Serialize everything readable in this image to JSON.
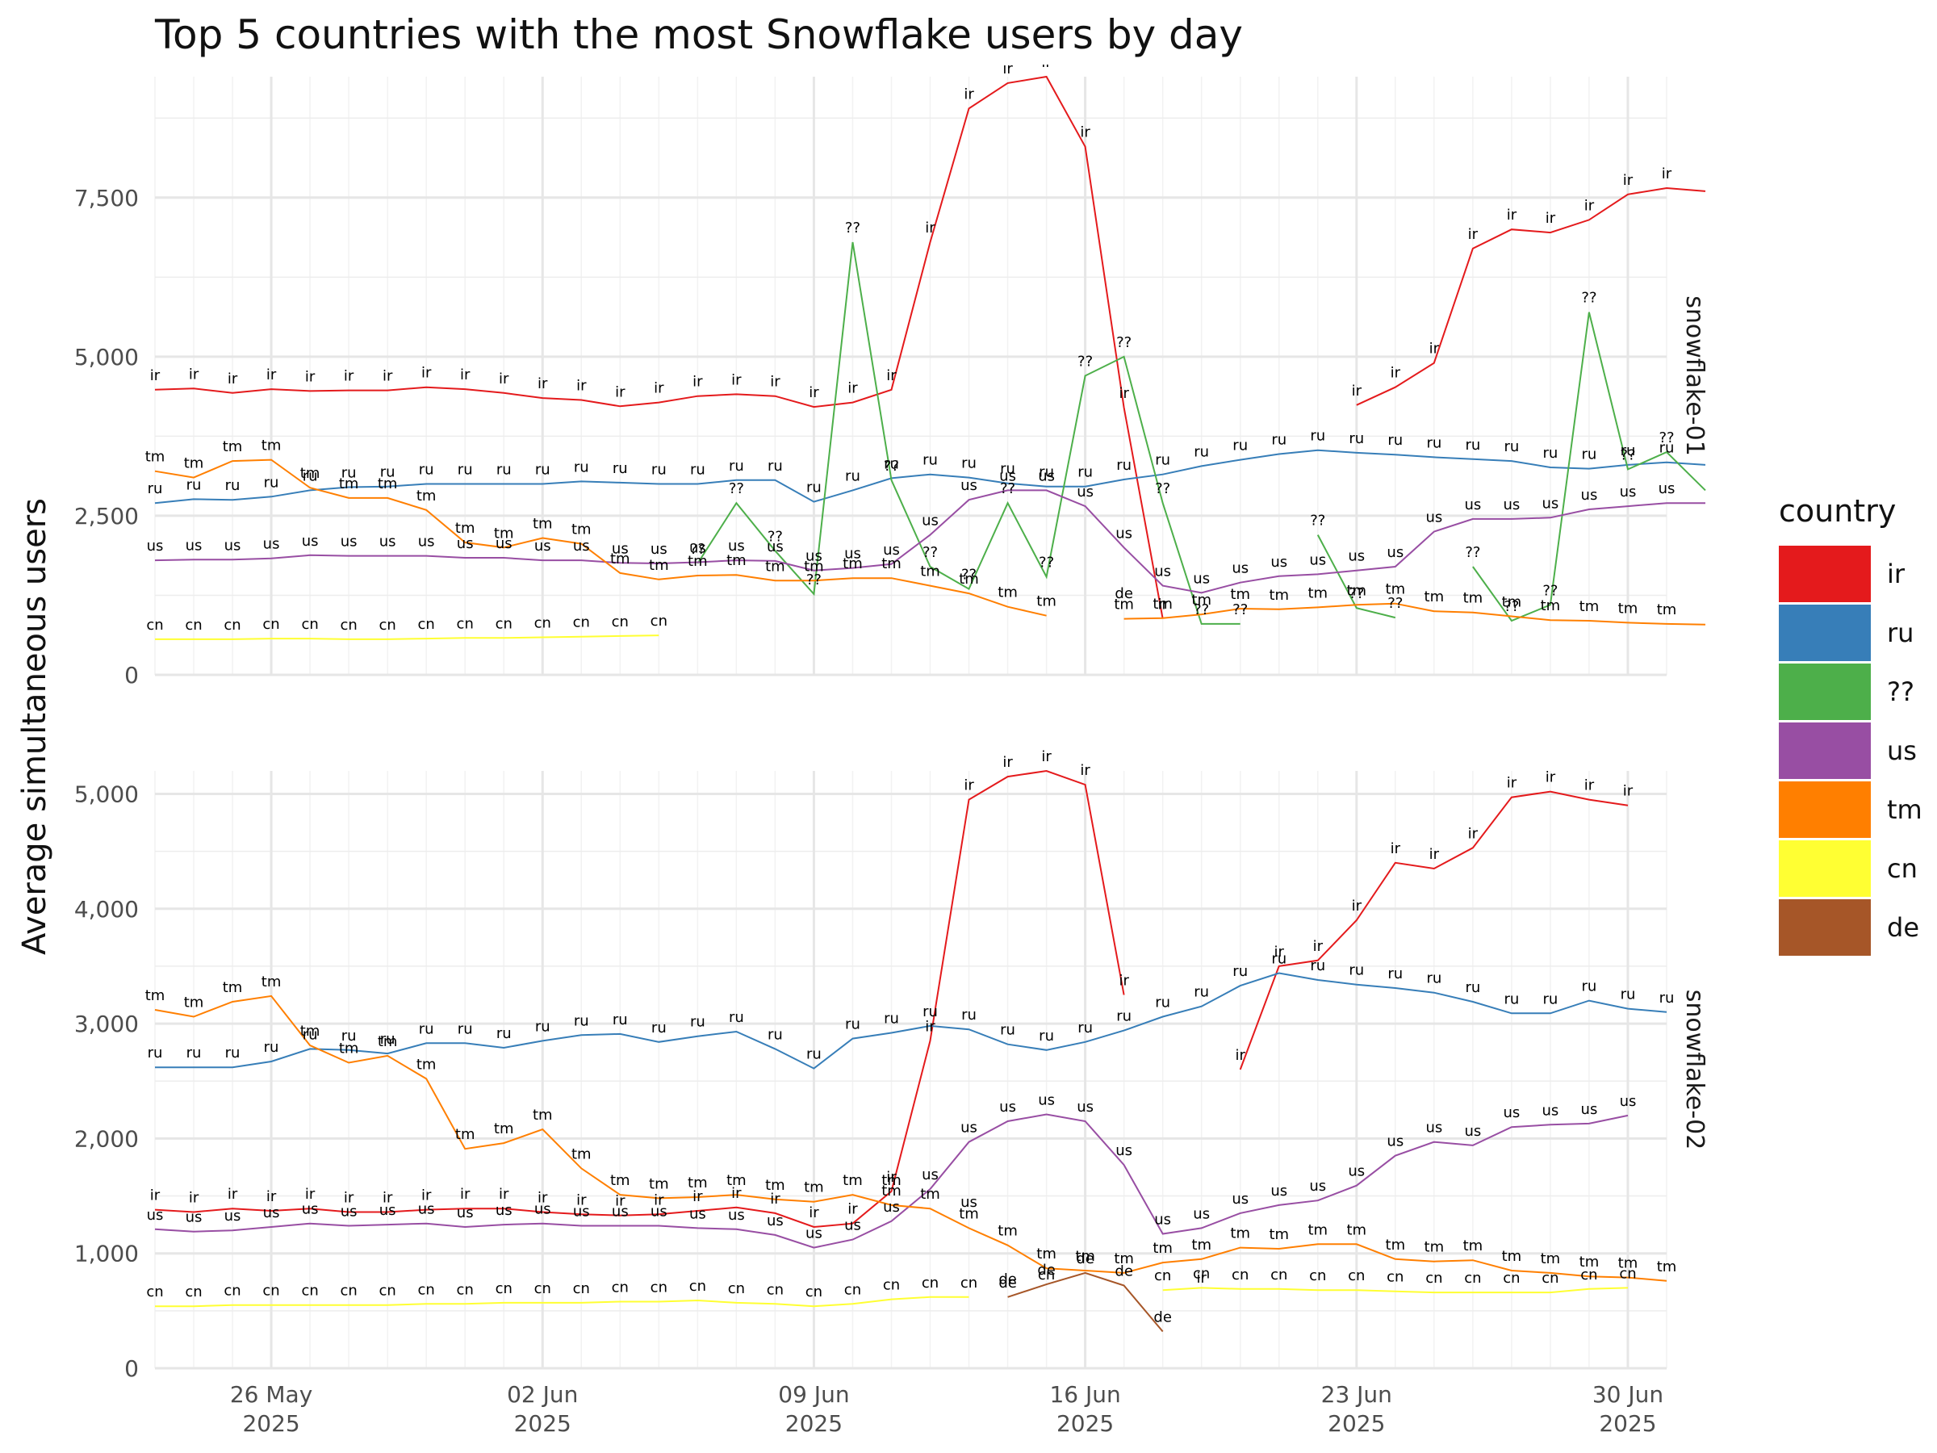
{
  "chart_data": {
    "type": "line",
    "title": "Top 5 countries with the most Snowflake users by day",
    "ylabel": "Average simultaneous users",
    "xlabel": "",
    "x_start": "2025-05-23",
    "x_range": [
      "2025-05-23",
      "2025-07-01"
    ],
    "x_ticks": [
      {
        "date": "2025-05-26",
        "line1": "26 May",
        "line2": "2025"
      },
      {
        "date": "2025-06-02",
        "line1": "02 Jun",
        "line2": "2025"
      },
      {
        "date": "2025-06-09",
        "line1": "09 Jun",
        "line2": "2025"
      },
      {
        "date": "2025-06-16",
        "line1": "16 Jun",
        "line2": "2025"
      },
      {
        "date": "2025-06-23",
        "line1": "23 Jun",
        "line2": "2025"
      },
      {
        "date": "2025-06-30",
        "line1": "30 Jun",
        "line2": "2025"
      }
    ],
    "legend": {
      "title": "country",
      "position": "right"
    },
    "grid": true,
    "countries": [
      {
        "code": "ir",
        "color": "#e41a1c"
      },
      {
        "code": "ru",
        "color": "#377eb8"
      },
      {
        "code": "??",
        "color": "#4daf4a"
      },
      {
        "code": "us",
        "color": "#984ea3"
      },
      {
        "code": "tm",
        "color": "#ff7f00"
      },
      {
        "code": "cn",
        "color": "#ffff33"
      },
      {
        "code": "de",
        "color": "#a65628"
      }
    ],
    "panels": [
      {
        "name": "snowflake-01",
        "ylim": [
          0,
          9400
        ],
        "yticks": [
          {
            "v": 0,
            "label": "0"
          },
          {
            "v": 2500,
            "label": "2,500"
          },
          {
            "v": 5000,
            "label": "5,000"
          },
          {
            "v": 7500,
            "label": "7,500"
          }
        ],
        "series": [
          {
            "country": "ir",
            "values": [
              4480,
              4500,
              4430,
              4490,
              4460,
              4470,
              4470,
              4520,
              4490,
              4430,
              4350,
              4320,
              4220,
              4280,
              4380,
              4410,
              4380,
              4210,
              4280,
              4480,
              6800,
              8900,
              9300,
              9400,
              8300,
              4200,
              880,
              null,
              null,
              null,
              null,
              4240,
              4520,
              4900,
              6700,
              7000,
              6950,
              7150,
              7550,
              7650,
              7600
            ]
          },
          {
            "country": "ru",
            "values": [
              2700,
              2760,
              2750,
              2800,
              2900,
              2950,
              2960,
              3000,
              3000,
              3000,
              3000,
              3040,
              3020,
              3000,
              3000,
              3060,
              3060,
              2720,
              2900,
              3090,
              3150,
              3100,
              3010,
              2960,
              2960,
              3070,
              3150,
              3280,
              3380,
              3470,
              3530,
              3490,
              3460,
              3420,
              3390,
              3360,
              3260,
              3240,
              3300,
              3340,
              3300
            ]
          },
          {
            "country": "??",
            "values": [
              null,
              null,
              null,
              null,
              null,
              null,
              null,
              null,
              null,
              null,
              null,
              null,
              null,
              null,
              1750,
              2700,
              1950,
              1270,
              6800,
              3060,
              1700,
              1350,
              2700,
              1540,
              4700,
              5000,
              2700,
              800,
              800,
              null,
              2200,
              1050,
              900,
              null,
              1700,
              850,
              1100,
              5700,
              3230,
              3500,
              2900
            ]
          },
          {
            "country": "us",
            "values": [
              1800,
              1810,
              1810,
              1830,
              1880,
              1870,
              1870,
              1870,
              1840,
              1840,
              1800,
              1800,
              1760,
              1750,
              1770,
              1800,
              1790,
              1640,
              1680,
              1740,
              2200,
              2750,
              2900,
              2900,
              2650,
              2000,
              1400,
              1290,
              1450,
              1550,
              1580,
              1640,
              1700,
              2250,
              2450,
              2450,
              2470,
              2600,
              2650,
              2700,
              2700
            ]
          },
          {
            "country": "tm",
            "values": [
              3200,
              3100,
              3360,
              3380,
              2940,
              2780,
              2780,
              2590,
              2080,
              2000,
              2150,
              2060,
              1600,
              1500,
              1560,
              1570,
              1480,
              1480,
              1520,
              1520,
              1400,
              1280,
              1070,
              930,
              null,
              880,
              890,
              950,
              1040,
              1030,
              1060,
              1100,
              1120,
              1000,
              980,
              920,
              860,
              850,
              820,
              800,
              790
            ]
          },
          {
            "country": "cn",
            "values": [
              560,
              560,
              560,
              570,
              570,
              560,
              560,
              570,
              580,
              580,
              590,
              600,
              610,
              620,
              null,
              null,
              null,
              null,
              null,
              null,
              null,
              null,
              null,
              null,
              null,
              null,
              null,
              null,
              null,
              null,
              null,
              null,
              null,
              null,
              null,
              null,
              null,
              null,
              null,
              null,
              null
            ]
          }
        ],
        "label_points": [
          {
            "t": "de",
            "d": 25,
            "v": 1050
          }
        ]
      },
      {
        "name": "snowflake-02",
        "ylim": [
          0,
          5200
        ],
        "yticks": [
          {
            "v": 0,
            "label": "0"
          },
          {
            "v": 1000,
            "label": "1,000"
          },
          {
            "v": 2000,
            "label": "2,000"
          },
          {
            "v": 3000,
            "label": "3,000"
          },
          {
            "v": 4000,
            "label": "4,000"
          },
          {
            "v": 5000,
            "label": "5,000"
          }
        ],
        "series": [
          {
            "country": "ir",
            "values": [
              1380,
              1360,
              1390,
              1370,
              1390,
              1360,
              1360,
              1380,
              1390,
              1390,
              1360,
              1340,
              1330,
              1340,
              1370,
              1400,
              1350,
              1230,
              1260,
              1540,
              2850,
              4950,
              5150,
              5200,
              5080,
              3250,
              null,
              null,
              2600,
              3500,
              3550,
              3900,
              4400,
              4350,
              4530,
              4970,
              5020,
              4950,
              4900
            ]
          },
          {
            "country": "ru",
            "values": [
              2620,
              2620,
              2620,
              2670,
              2780,
              2770,
              2740,
              2830,
              2830,
              2790,
              2850,
              2900,
              2910,
              2840,
              2890,
              2930,
              2780,
              2610,
              2870,
              2920,
              2980,
              2950,
              2820,
              2770,
              2840,
              2940,
              3060,
              3150,
              3330,
              3440,
              3380,
              3340,
              3310,
              3270,
              3190,
              3090,
              3090,
              3200,
              3130,
              3100
            ]
          },
          {
            "country": "us",
            "values": [
              1210,
              1190,
              1200,
              1230,
              1260,
              1240,
              1250,
              1260,
              1230,
              1250,
              1260,
              1240,
              1240,
              1240,
              1220,
              1210,
              1160,
              1050,
              1120,
              1280,
              1560,
              1970,
              2150,
              2210,
              2150,
              1770,
              1170,
              1220,
              1350,
              1420,
              1460,
              1590,
              1850,
              1970,
              1940,
              2100,
              2120,
              2130,
              2200
            ]
          },
          {
            "country": "tm",
            "values": [
              3120,
              3060,
              3190,
              3240,
              2810,
              2660,
              2720,
              2520,
              1910,
              1960,
              2080,
              1740,
              1510,
              1480,
              1490,
              1510,
              1470,
              1450,
              1510,
              1420,
              1390,
              1220,
              1070,
              870,
              850,
              830,
              920,
              950,
              1050,
              1040,
              1080,
              1080,
              950,
              930,
              940,
              850,
              830,
              800,
              790,
              760
            ]
          },
          {
            "country": "cn",
            "values": [
              540,
              540,
              550,
              550,
              550,
              550,
              550,
              560,
              560,
              570,
              570,
              570,
              580,
              580,
              590,
              570,
              560,
              540,
              560,
              600,
              620,
              620,
              null,
              null,
              null,
              null,
              680,
              700,
              690,
              690,
              680,
              680,
              670,
              660,
              660,
              660,
              660,
              690,
              700
            ]
          },
          {
            "country": "de",
            "values": [
              null,
              null,
              null,
              null,
              null,
              null,
              null,
              null,
              null,
              null,
              null,
              null,
              null,
              null,
              null,
              null,
              null,
              null,
              null,
              null,
              null,
              null,
              620,
              730,
              830,
              720,
              320,
              null,
              null,
              null,
              null,
              null,
              null,
              null,
              null,
              null,
              null,
              null,
              null,
              null
            ]
          }
        ],
        "label_points": [
          {
            "t": "ir",
            "d": 27,
            "v": 660
          },
          {
            "t": "tm",
            "d": 19,
            "v": 1510
          },
          {
            "t": "us",
            "d": 21,
            "v": 1320
          },
          {
            "t": "cn",
            "d": 23,
            "v": 690
          },
          {
            "t": "de",
            "d": 22,
            "v": 650
          }
        ]
      }
    ]
  }
}
